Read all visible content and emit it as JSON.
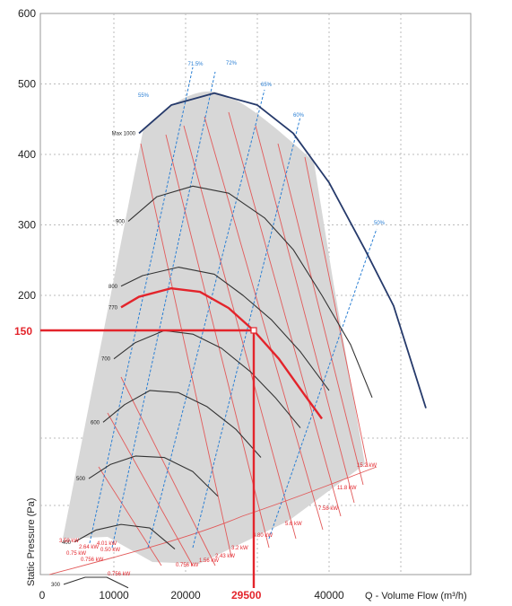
{
  "chart_data": {
    "type": "line",
    "title": "",
    "xlabel": "Q - Volume Flow (m³/h)",
    "ylabel": "Static Pressure (Pa)",
    "xlim": [
      0,
      60000
    ],
    "ylim": [
      0,
      600
    ],
    "x_ticks": [
      "0",
      "10000",
      "20000",
      "40000"
    ],
    "y_ticks": [
      "600",
      "500",
      "400",
      "300",
      "200"
    ],
    "grid": true,
    "operating_point": {
      "x": 29500,
      "y": 150,
      "x_label": "29500",
      "y_label": "150"
    },
    "rpm_curves": [
      {
        "label": "Max 1000",
        "x": [
          13500,
          18000,
          24000,
          30000,
          35000,
          40000,
          45000,
          49000,
          53500
        ],
        "y": [
          430,
          470,
          487,
          470,
          430,
          360,
          265,
          185,
          40
        ]
      },
      {
        "label": "900",
        "x": [
          12000,
          16000,
          21000,
          26000,
          31000,
          35000,
          39000,
          43000,
          46000
        ],
        "y": [
          305,
          340,
          355,
          345,
          310,
          265,
          200,
          130,
          55
        ]
      },
      {
        "label": "800",
        "x": [
          11000,
          14000,
          19000,
          24000,
          28000,
          32000,
          36000,
          40000
        ],
        "y": [
          213,
          228,
          240,
          230,
          200,
          165,
          120,
          65
        ]
      },
      {
        "label": "770",
        "x": [
          11000,
          13500,
          18000,
          22000,
          26000,
          29500,
          33000,
          36500,
          39000
        ],
        "y": [
          183,
          198,
          210,
          205,
          182,
          150,
          110,
          60,
          25
        ]
      },
      {
        "label": "700",
        "x": [
          10000,
          13000,
          17000,
          21000,
          25000,
          29000,
          32500,
          36000
        ],
        "y": [
          110,
          133,
          150,
          145,
          125,
          92,
          55,
          12
        ]
      },
      {
        "label": "600",
        "x": [
          8500,
          11500,
          15000,
          19000,
          23000,
          27000,
          30500
        ],
        "y": [
          20,
          45,
          65,
          62,
          42,
          10,
          -30
        ]
      },
      {
        "label": "500",
        "x": [
          6500,
          9500,
          13000,
          17000,
          21000,
          24500
        ],
        "y": [
          -60,
          -40,
          -28,
          -30,
          -50,
          -85
        ]
      },
      {
        "label": "400",
        "x": [
          4500,
          7500,
          11000,
          15000,
          18500
        ],
        "y": [
          -150,
          -133,
          -125,
          -130,
          -160
        ]
      },
      {
        "label": "300",
        "x": [
          3000,
          6000,
          9000,
          12000
        ],
        "y": [
          -210,
          -200,
          -200,
          -215
        ]
      }
    ],
    "efficiency_labels": [
      "71.5%",
      "72%",
      "65%",
      "60%",
      "50%",
      "55%"
    ],
    "power_labels": [
      "15.2 kW",
      "11.8 kW",
      "7.58 kW",
      "5.6 kW",
      "4.80 kW",
      "3.2 kW",
      "2.43 kW",
      "1.56 kW",
      "0.756 kW",
      "0.756 kW",
      "2.64 kW",
      "3.58 kW",
      "4.01 kW",
      "0.756 kW",
      "0.50 kW",
      "0.75 kW"
    ]
  }
}
